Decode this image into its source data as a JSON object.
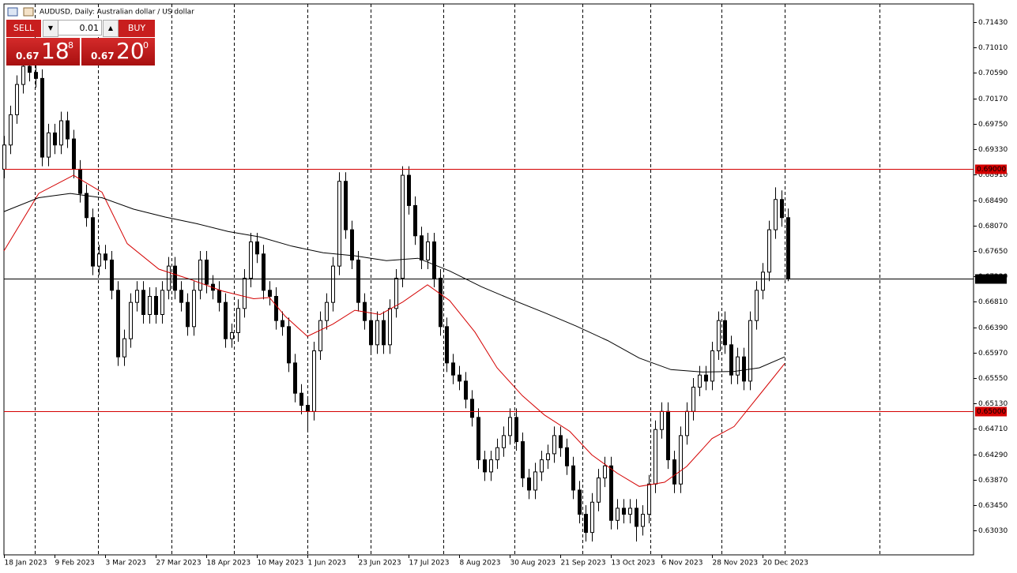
{
  "window": {
    "title": "AUDUSD, Daily: Australian dollar / US dollar"
  },
  "trade_panel": {
    "sell": "SELL",
    "lot": "0.01",
    "buy": "BUY",
    "bid_big": "0.67",
    "bid_pips": "18",
    "bid_point": "8",
    "ask_big": "0.67",
    "ask_pips": "20",
    "ask_point": "0"
  },
  "chart_data": {
    "type": "candlestick",
    "up_color": "#ffffff",
    "down_color": "#000000",
    "x": [
      0,
      2,
      4,
      6,
      8,
      10,
      12,
      14,
      16,
      18,
      20,
      22,
      24,
      26,
      28,
      30,
      32,
      34,
      36,
      38,
      40,
      42,
      44,
      46,
      48,
      50,
      52,
      54,
      56,
      58,
      60,
      62,
      64,
      66,
      68,
      70,
      72,
      74,
      76,
      78,
      80,
      82,
      84,
      86,
      88,
      90,
      92,
      94,
      96,
      98,
      100,
      102,
      104,
      106,
      108,
      110,
      112,
      114,
      116,
      118,
      120,
      122,
      124,
      126,
      128,
      130,
      132,
      134,
      136,
      138,
      140,
      142,
      144,
      146,
      148,
      150,
      152,
      154,
      156,
      158,
      160,
      162,
      164,
      166,
      168,
      170,
      172,
      174,
      176,
      178,
      180,
      182,
      184,
      186,
      188,
      190,
      192,
      194,
      196,
      198,
      200,
      202,
      204,
      206,
      208,
      210,
      212,
      214,
      216,
      218,
      220,
      222,
      224,
      226,
      228,
      230,
      232,
      234,
      236,
      238,
      240,
      242,
      244,
      246,
      248
    ],
    "open": [
      0.69,
      0.694,
      0.699,
      0.704,
      0.707,
      0.706,
      0.705,
      0.692,
      0.696,
      0.694,
      0.698,
      0.695,
      0.69,
      0.686,
      0.682,
      0.674,
      0.676,
      0.675,
      0.67,
      0.659,
      0.662,
      0.668,
      0.67,
      0.666,
      0.669,
      0.666,
      0.67,
      0.674,
      0.67,
      0.668,
      0.664,
      0.67,
      0.675,
      0.671,
      0.67,
      0.668,
      0.662,
      0.663,
      0.667,
      0.672,
      0.678,
      0.676,
      0.67,
      0.669,
      0.665,
      0.664,
      0.658,
      0.653,
      0.651,
      0.65,
      0.66,
      0.665,
      0.668,
      0.674,
      0.688,
      0.68,
      0.675,
      0.668,
      0.665,
      0.661,
      0.665,
      0.661,
      0.667,
      0.672,
      0.689,
      0.684,
      0.679,
      0.675,
      0.678,
      0.672,
      0.664,
      0.658,
      0.656,
      0.655,
      0.652,
      0.649,
      0.642,
      0.64,
      0.642,
      0.644,
      0.646,
      0.649,
      0.645,
      0.639,
      0.637,
      0.64,
      0.642,
      0.643,
      0.646,
      0.644,
      0.641,
      0.637,
      0.633,
      0.63,
      0.635,
      0.639,
      0.641,
      0.632,
      0.634,
      0.633,
      0.634,
      0.631,
      0.633,
      0.638,
      0.647,
      0.65,
      0.642,
      0.638,
      0.646,
      0.65,
      0.654,
      0.656,
      0.655,
      0.66,
      0.665,
      0.661,
      0.656,
      0.659,
      0.655,
      0.665,
      0.67,
      0.673,
      0.68,
      0.685,
      0.682
    ],
    "high": [
      0.6955,
      0.7005,
      0.7055,
      0.7085,
      0.7085,
      0.7075,
      0.7065,
      0.6975,
      0.6975,
      0.6995,
      0.6995,
      0.6965,
      0.6915,
      0.6875,
      0.6835,
      0.6775,
      0.6775,
      0.6765,
      0.6715,
      0.6635,
      0.6695,
      0.6715,
      0.6715,
      0.6705,
      0.6705,
      0.6715,
      0.6755,
      0.6755,
      0.6715,
      0.6695,
      0.6715,
      0.6765,
      0.6765,
      0.6725,
      0.6715,
      0.6695,
      0.6645,
      0.6685,
      0.6735,
      0.6795,
      0.6795,
      0.6775,
      0.6715,
      0.6705,
      0.6665,
      0.6655,
      0.6595,
      0.6545,
      0.6525,
      0.6615,
      0.6665,
      0.6695,
      0.6755,
      0.6895,
      0.6895,
      0.6815,
      0.6765,
      0.6695,
      0.6665,
      0.6665,
      0.6665,
      0.6685,
      0.6735,
      0.6905,
      0.6905,
      0.6855,
      0.6805,
      0.6795,
      0.6795,
      0.6735,
      0.6655,
      0.6595,
      0.6575,
      0.6565,
      0.6535,
      0.6505,
      0.6435,
      0.6435,
      0.6455,
      0.6475,
      0.6505,
      0.6505,
      0.6465,
      0.6405,
      0.6415,
      0.6435,
      0.6445,
      0.6475,
      0.6475,
      0.6455,
      0.6425,
      0.6385,
      0.6345,
      0.6365,
      0.6405,
      0.6425,
      0.6425,
      0.6355,
      0.6355,
      0.6355,
      0.6355,
      0.6345,
      0.6395,
      0.6485,
      0.6515,
      0.6515,
      0.6435,
      0.6475,
      0.6515,
      0.6555,
      0.6575,
      0.6575,
      0.6615,
      0.6665,
      0.6665,
      0.6625,
      0.6605,
      0.6605,
      0.6665,
      0.6715,
      0.6745,
      0.6815,
      0.687,
      0.6865,
      0.6835
    ],
    "low": [
      0.6885,
      0.6925,
      0.6975,
      0.7025,
      0.7045,
      0.7035,
      0.6905,
      0.6905,
      0.6925,
      0.6925,
      0.6935,
      0.6885,
      0.6845,
      0.6805,
      0.6725,
      0.6725,
      0.6735,
      0.6685,
      0.6575,
      0.6575,
      0.6605,
      0.6665,
      0.6645,
      0.6645,
      0.6645,
      0.6645,
      0.6685,
      0.6685,
      0.6665,
      0.6625,
      0.6625,
      0.6685,
      0.6695,
      0.6685,
      0.6665,
      0.6605,
      0.6605,
      0.6615,
      0.6655,
      0.6705,
      0.6745,
      0.6685,
      0.6675,
      0.6635,
      0.6625,
      0.6565,
      0.6515,
      0.6495,
      0.647,
      0.6485,
      0.6585,
      0.6635,
      0.6665,
      0.6725,
      0.6785,
      0.6735,
      0.6665,
      0.6635,
      0.6595,
      0.6595,
      0.6595,
      0.6595,
      0.6655,
      0.6705,
      0.6825,
      0.6775,
      0.6735,
      0.6735,
      0.6705,
      0.6625,
      0.6565,
      0.6545,
      0.6535,
      0.6505,
      0.6475,
      0.6405,
      0.6385,
      0.6385,
      0.6405,
      0.6425,
      0.6445,
      0.6435,
      0.6375,
      0.6355,
      0.6355,
      0.6385,
      0.6405,
      0.6415,
      0.6425,
      0.6395,
      0.6355,
      0.6315,
      0.6285,
      0.6285,
      0.6335,
      0.6375,
      0.6305,
      0.6305,
      0.6315,
      0.6315,
      0.6285,
      0.6295,
      0.6315,
      0.6365,
      0.6455,
      0.6405,
      0.6365,
      0.6365,
      0.6445,
      0.6485,
      0.6525,
      0.6535,
      0.6535,
      0.6585,
      0.6595,
      0.6545,
      0.6545,
      0.6535,
      0.6535,
      0.6635,
      0.6685,
      0.6715,
      0.6785,
      0.6805,
      0.6715
    ],
    "close": [
      0.694,
      0.699,
      0.704,
      0.707,
      0.706,
      0.705,
      0.692,
      0.696,
      0.694,
      0.698,
      0.695,
      0.69,
      0.686,
      0.682,
      0.674,
      0.676,
      0.675,
      0.67,
      0.659,
      0.662,
      0.668,
      0.67,
      0.666,
      0.669,
      0.666,
      0.67,
      0.674,
      0.67,
      0.668,
      0.664,
      0.67,
      0.675,
      0.671,
      0.67,
      0.668,
      0.662,
      0.663,
      0.667,
      0.672,
      0.678,
      0.676,
      0.67,
      0.669,
      0.665,
      0.664,
      0.658,
      0.653,
      0.651,
      0.65,
      0.66,
      0.665,
      0.668,
      0.674,
      0.688,
      0.68,
      0.675,
      0.668,
      0.665,
      0.661,
      0.665,
      0.661,
      0.667,
      0.672,
      0.689,
      0.684,
      0.679,
      0.675,
      0.678,
      0.672,
      0.664,
      0.658,
      0.656,
      0.655,
      0.652,
      0.649,
      0.642,
      0.64,
      0.642,
      0.644,
      0.646,
      0.649,
      0.645,
      0.639,
      0.637,
      0.64,
      0.642,
      0.643,
      0.646,
      0.644,
      0.641,
      0.637,
      0.633,
      0.63,
      0.635,
      0.639,
      0.641,
      0.632,
      0.634,
      0.633,
      0.634,
      0.631,
      0.633,
      0.638,
      0.647,
      0.65,
      0.642,
      0.638,
      0.646,
      0.65,
      0.654,
      0.656,
      0.655,
      0.66,
      0.665,
      0.661,
      0.656,
      0.659,
      0.655,
      0.665,
      0.67,
      0.673,
      0.68,
      0.685,
      0.682,
      0.6719
    ],
    "moving_averages": [
      {
        "color": "#d40000",
        "x": [
          0,
          11,
          22,
          31,
          39,
          49,
          59,
          69,
          79,
          84,
          89,
          96,
          104,
          111,
          119,
          126,
          134,
          141,
          149,
          156,
          164,
          171,
          179,
          186,
          194,
          201,
          209,
          216,
          224,
          231,
          239,
          247
        ],
        "values": [
          0.6765,
          0.686,
          0.689,
          0.6862,
          0.6777,
          0.6735,
          0.6718,
          0.6699,
          0.6686,
          0.6688,
          0.6657,
          0.6624,
          0.6644,
          0.6667,
          0.666,
          0.668,
          0.6709,
          0.6683,
          0.6631,
          0.6572,
          0.6526,
          0.6494,
          0.6467,
          0.6428,
          0.6398,
          0.6376,
          0.6383,
          0.6409,
          0.6455,
          0.6475,
          0.6527,
          0.6579
        ]
      },
      {
        "color": "#000000",
        "x": [
          0,
          11,
          21,
          31,
          41,
          51,
          61,
          71,
          81,
          91,
          101,
          111,
          121,
          131,
          141,
          151,
          161,
          171,
          181,
          191,
          201,
          211,
          221,
          231,
          239,
          247
        ],
        "values": [
          0.683,
          0.6853,
          0.686,
          0.6853,
          0.6834,
          0.6821,
          0.681,
          0.6797,
          0.6788,
          0.6773,
          0.6762,
          0.6757,
          0.6749,
          0.6753,
          0.6732,
          0.6706,
          0.6684,
          0.6663,
          0.6641,
          0.6617,
          0.6588,
          0.6569,
          0.6565,
          0.6566,
          0.6572,
          0.659
        ]
      }
    ],
    "hlines": [
      {
        "value": 0.69,
        "label": "0.69000",
        "color": "#d40000"
      },
      {
        "value": 0.65,
        "label": "0.65000",
        "color": "#d40000"
      },
      {
        "value": 0.67188,
        "label": "0.67188",
        "color": "#000000"
      }
    ],
    "period_separators": [
      9.75,
      29.75,
      53,
      72.75,
      96,
      116,
      139,
      161.5,
      183,
      204.5,
      227,
      247,
      277
    ],
    "xlim": [
      0,
      306.75
    ],
    "ylim": [
      0.6263,
      0.7173
    ],
    "xticks": [
      {
        "value": 0,
        "label": "18 Jan 2023"
      },
      {
        "value": 16,
        "label": "9 Feb 2023"
      },
      {
        "value": 32,
        "label": "3 Mar 2023"
      },
      {
        "value": 48,
        "label": "27 Mar 2023"
      },
      {
        "value": 64,
        "label": "18 Apr 2023"
      },
      {
        "value": 80,
        "label": "10 May 2023"
      },
      {
        "value": 96,
        "label": "1 Jun 2023"
      },
      {
        "value": 112,
        "label": "23 Jun 2023"
      },
      {
        "value": 128,
        "label": "17 Jul 2023"
      },
      {
        "value": 144,
        "label": "8 Aug 2023"
      },
      {
        "value": 160,
        "label": "30 Aug 2023"
      },
      {
        "value": 176,
        "label": "21 Sep 2023"
      },
      {
        "value": 192,
        "label": "13 Oct 2023"
      },
      {
        "value": 208,
        "label": "6 Nov 2023"
      },
      {
        "value": 224,
        "label": "28 Nov 2023"
      },
      {
        "value": 240,
        "label": "20 Dec 2023"
      }
    ],
    "yticks": [
      {
        "value": 0.7143,
        "label": "0.71430"
      },
      {
        "value": 0.7101,
        "label": "0.71010"
      },
      {
        "value": 0.7059,
        "label": "0.70590"
      },
      {
        "value": 0.7017,
        "label": "0.70170"
      },
      {
        "value": 0.6975,
        "label": "0.69750"
      },
      {
        "value": 0.6933,
        "label": "0.69330"
      },
      {
        "value": 0.6891,
        "label": "0.68910"
      },
      {
        "value": 0.6849,
        "label": "0.68490"
      },
      {
        "value": 0.6807,
        "label": "0.68070"
      },
      {
        "value": 0.6765,
        "label": "0.67650"
      },
      {
        "value": 0.6723,
        "label": "0.67230"
      },
      {
        "value": 0.6681,
        "label": "0.66810"
      },
      {
        "value": 0.6639,
        "label": "0.66390"
      },
      {
        "value": 0.6597,
        "label": "0.65970"
      },
      {
        "value": 0.6555,
        "label": "0.65550"
      },
      {
        "value": 0.6513,
        "label": "0.65130"
      },
      {
        "value": 0.6471,
        "label": "0.64710"
      },
      {
        "value": 0.6429,
        "label": "0.64290"
      },
      {
        "value": 0.6387,
        "label": "0.63870"
      },
      {
        "value": 0.6345,
        "label": "0.63450"
      },
      {
        "value": 0.6303,
        "label": "0.63030"
      }
    ]
  }
}
